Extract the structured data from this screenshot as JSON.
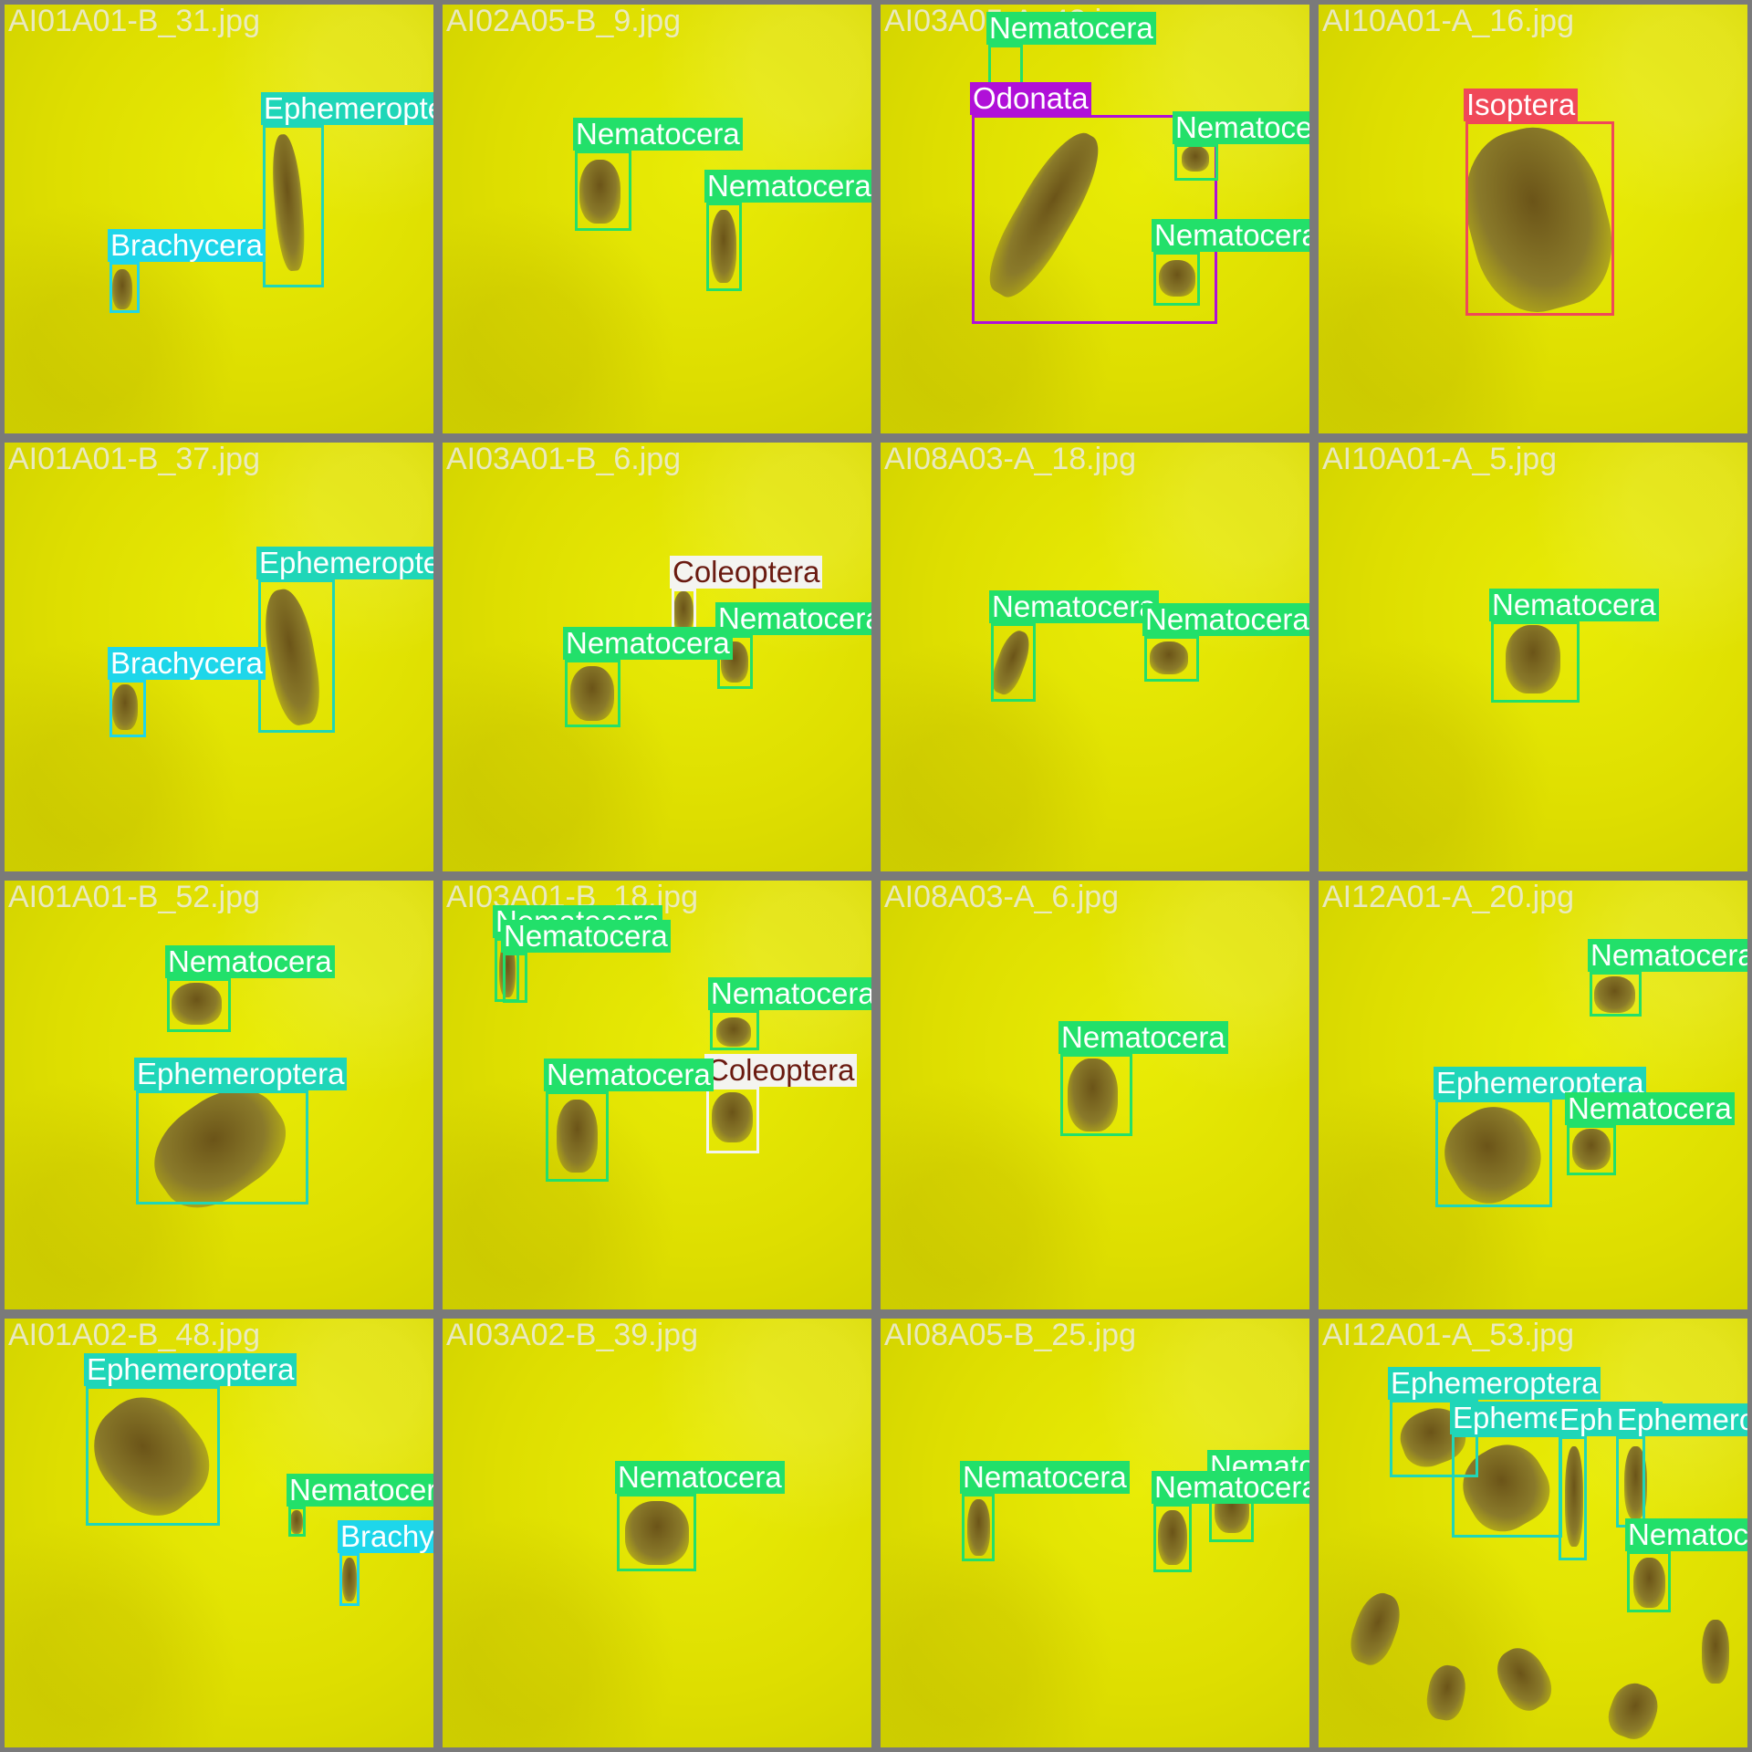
{
  "tiles": [
    {
      "file": "AI01A01-B_31.jpg",
      "detections": [
        {
          "label": "Ephemeroptera",
          "cls": "eph"
        },
        {
          "label": "Brachycera",
          "cls": "bra"
        }
      ]
    },
    {
      "file": "AI02A05-B_9.jpg",
      "detections": [
        {
          "label": "Nematocera",
          "cls": "nem"
        },
        {
          "label": "Nematocera",
          "cls": "nem"
        }
      ]
    },
    {
      "file": "AI03A05-A_43.jpg",
      "detections": [
        {
          "label": "Nematocera",
          "cls": "nem"
        },
        {
          "label": "Odonata",
          "cls": "odo"
        },
        {
          "label": "Nematocera",
          "cls": "nem"
        },
        {
          "label": "Nematocera",
          "cls": "nem"
        }
      ]
    },
    {
      "file": "AI10A01-A_16.jpg",
      "detections": [
        {
          "label": "Isoptera",
          "cls": "iso"
        }
      ]
    },
    {
      "file": "AI01A01-B_37.jpg",
      "detections": [
        {
          "label": "Ephemeroptera",
          "cls": "eph"
        },
        {
          "label": "Brachycera",
          "cls": "bra"
        }
      ]
    },
    {
      "file": "AI03A01-B_6.jpg",
      "detections": [
        {
          "label": "Coleoptera",
          "cls": "col"
        },
        {
          "label": "Nematocera",
          "cls": "nem"
        },
        {
          "label": "Nematocera",
          "cls": "nem"
        }
      ]
    },
    {
      "file": "AI08A03-A_18.jpg",
      "detections": [
        {
          "label": "Nematocera",
          "cls": "nem"
        },
        {
          "label": "Nematocera",
          "cls": "nem"
        }
      ]
    },
    {
      "file": "AI10A01-A_5.jpg",
      "detections": [
        {
          "label": "Nematocera",
          "cls": "nem"
        }
      ]
    },
    {
      "file": "AI01A01-B_52.jpg",
      "detections": [
        {
          "label": "Nematocera",
          "cls": "nem"
        },
        {
          "label": "Ephemeroptera",
          "cls": "eph"
        }
      ]
    },
    {
      "file": "AI03A01-B_18.jpg",
      "detections": [
        {
          "label": "Nematocera",
          "cls": "nem"
        },
        {
          "label": "Nematocera",
          "cls": "nem"
        },
        {
          "label": "Nematocera",
          "cls": "nem"
        },
        {
          "label": "Coleoptera",
          "cls": "col"
        },
        {
          "label": "Nematocera",
          "cls": "nem"
        }
      ]
    },
    {
      "file": "AI08A03-A_6.jpg",
      "detections": [
        {
          "label": "Nematocera",
          "cls": "nem"
        }
      ]
    },
    {
      "file": "AI12A01-A_20.jpg",
      "detections": [
        {
          "label": "Nematocera",
          "cls": "nem"
        },
        {
          "label": "Ephemeroptera",
          "cls": "eph"
        },
        {
          "label": "Nematocera",
          "cls": "nem"
        }
      ]
    },
    {
      "file": "AI01A02-B_48.jpg",
      "detections": [
        {
          "label": "Ephemeroptera",
          "cls": "eph"
        },
        {
          "label": "Nematocera",
          "cls": "nem"
        },
        {
          "label": "Brachycera",
          "cls": "bra"
        }
      ]
    },
    {
      "file": "AI03A02-B_39.jpg",
      "detections": [
        {
          "label": "Nematocera",
          "cls": "nem"
        }
      ]
    },
    {
      "file": "AI08A05-B_25.jpg",
      "detections": [
        {
          "label": "Nematocera",
          "cls": "nem"
        },
        {
          "label": "Nematocera",
          "cls": "nem"
        },
        {
          "label": "Nematocera",
          "cls": "nem"
        }
      ]
    },
    {
      "file": "AI12A01-A_53.jpg",
      "detections": [
        {
          "label": "Ephemeroptera",
          "cls": "eph"
        },
        {
          "label": "Ephemeroptera",
          "cls": "eph"
        },
        {
          "label": "Ephemeroptera",
          "cls": "eph"
        },
        {
          "label": "Ephemeroptera",
          "cls": "eph"
        },
        {
          "label": "Nematocera",
          "cls": "nem"
        }
      ]
    }
  ]
}
